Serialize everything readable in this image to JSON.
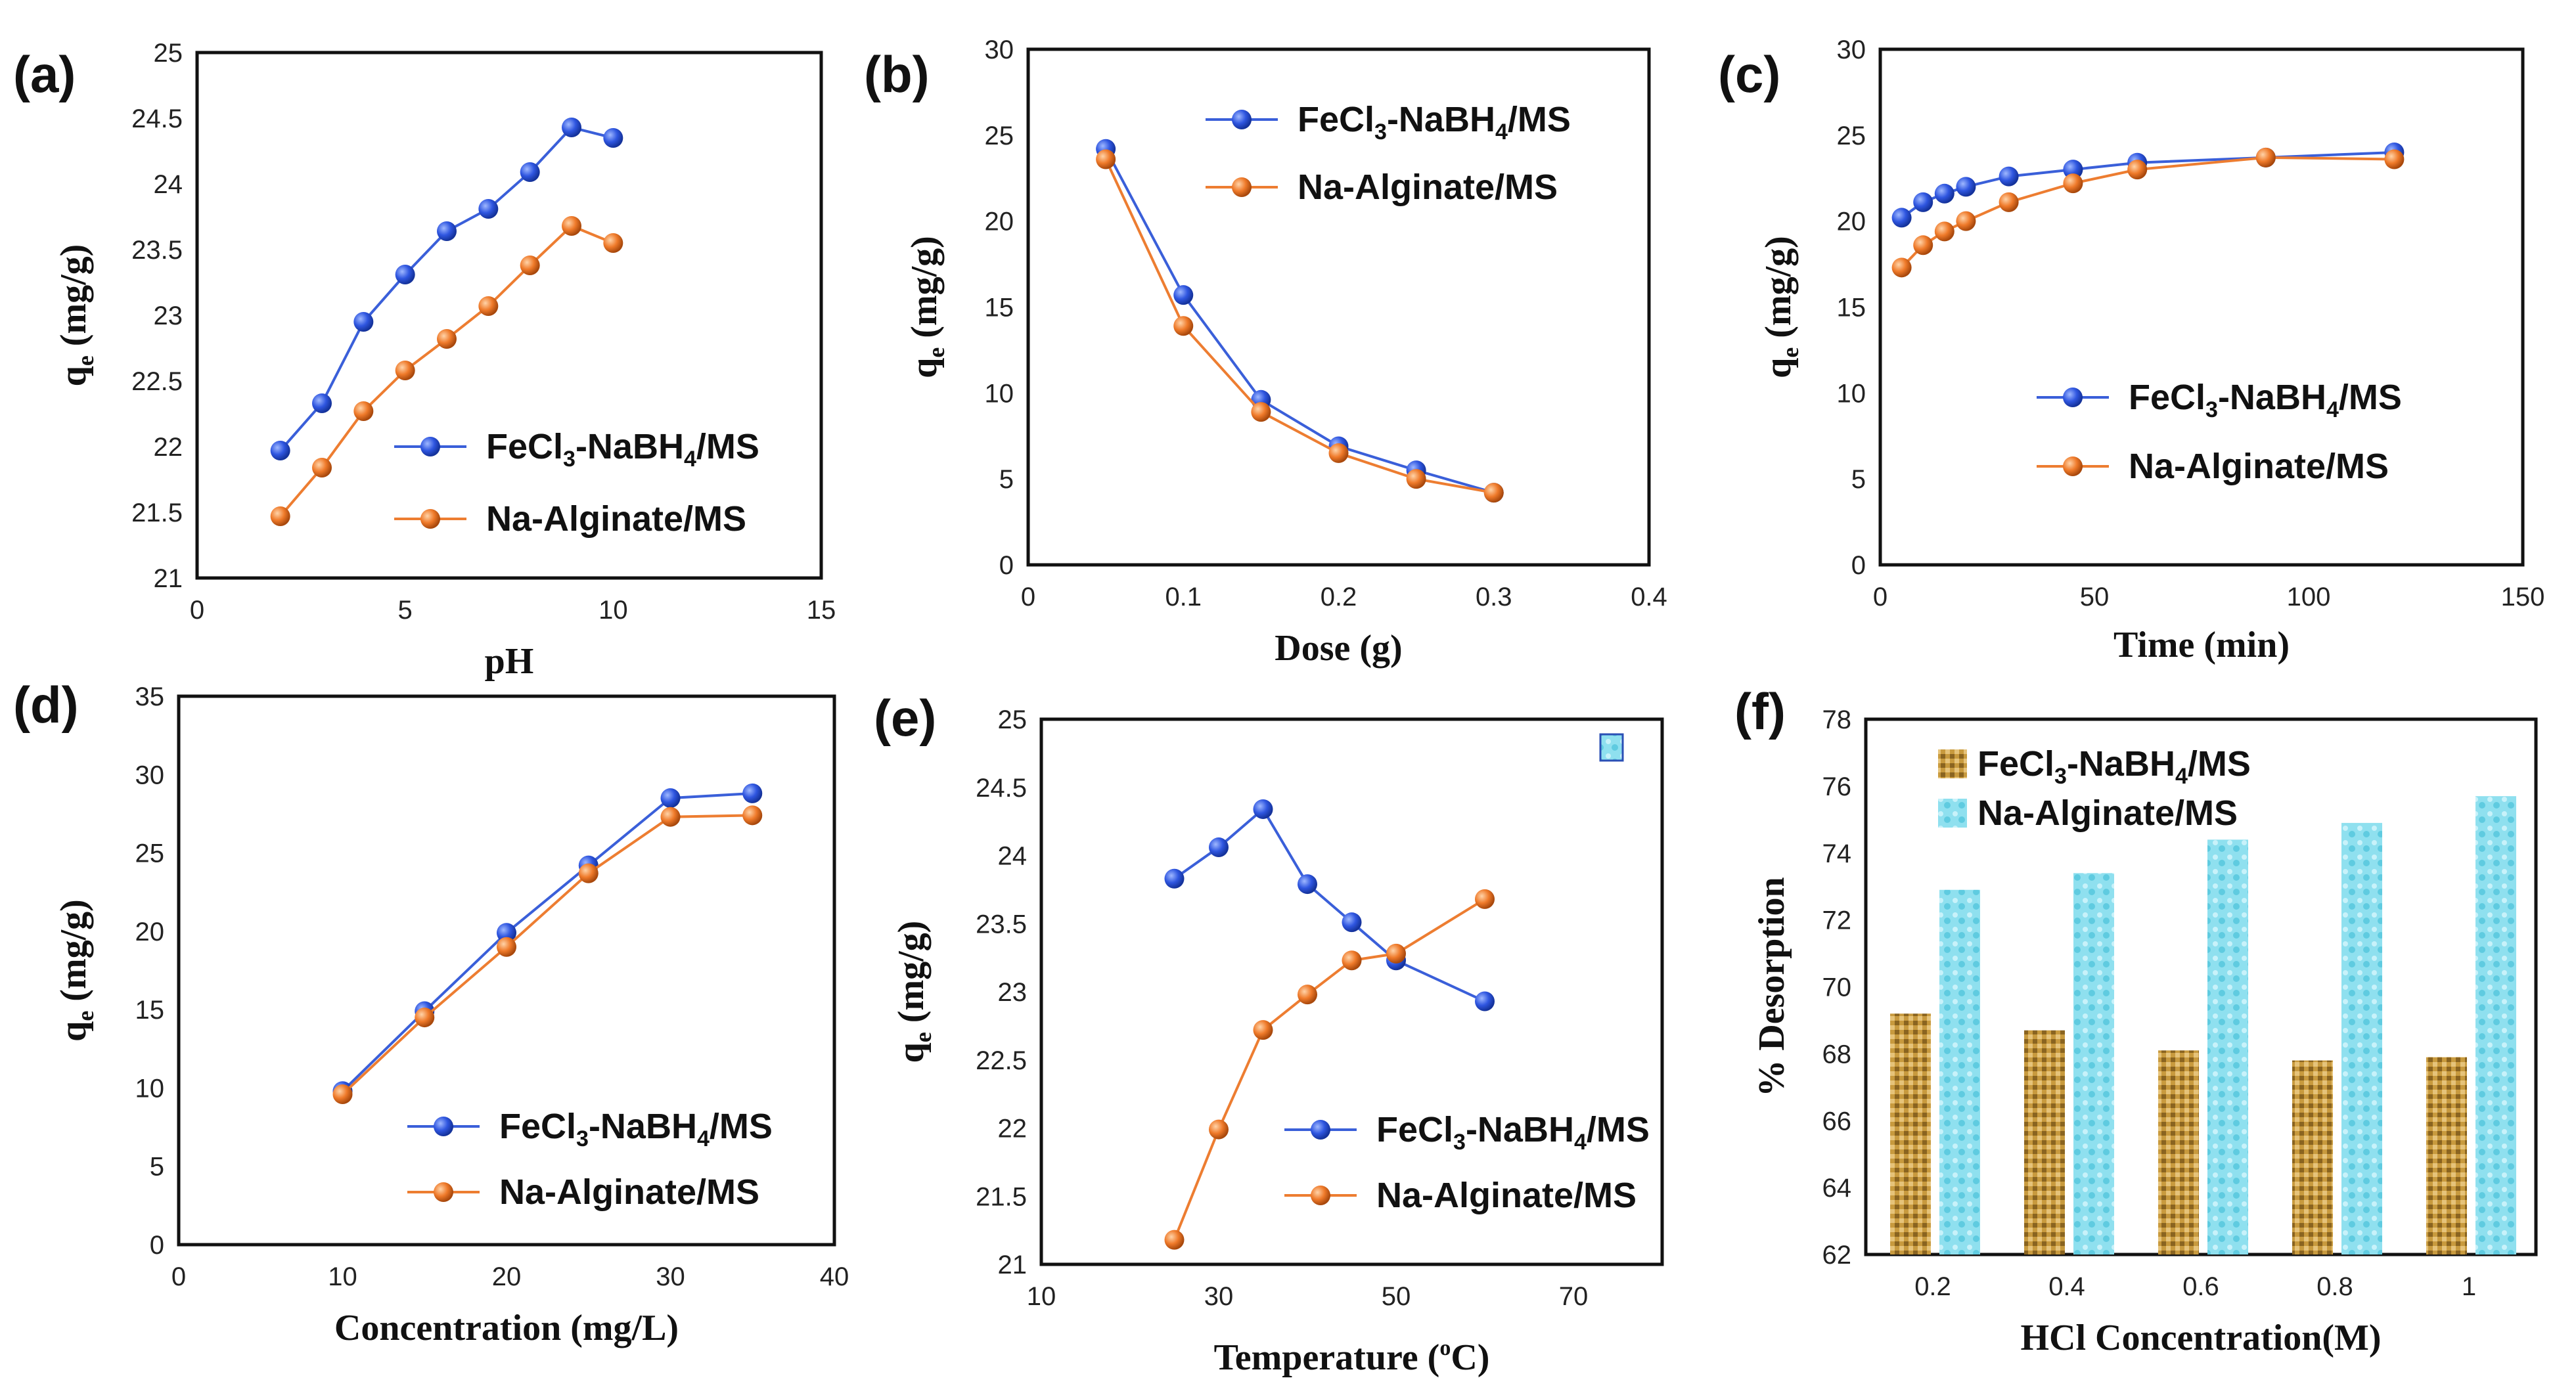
{
  "colors": {
    "series1_line": "#3a5fd9",
    "series1_marker": "#2f56e0",
    "series2_line": "#ed7d31",
    "series2_marker": "#ef7a2a",
    "bar1": "#c79a3c",
    "bar2": "#8fe0ef"
  },
  "legend_labels": {
    "s1_a": "FeCl",
    "s1_sub1": "3",
    "s1_b": "-NaBH",
    "s1_sub2": "4",
    "s1_c": "/MS",
    "s2": "Na-Alginate/MS"
  },
  "chart_data": [
    {
      "panel": "(a)",
      "type": "line",
      "xlabel": "pH",
      "ylabel": "q",
      "ylabel_sub": "e",
      "ylabel_unit": " (mg/g)",
      "xlim": [
        0,
        15
      ],
      "ylim": [
        21,
        25
      ],
      "xticks": [
        "0",
        "5",
        "10",
        "15"
      ],
      "yticks": [
        "21",
        "21.5",
        "22",
        "22.5",
        "23",
        "23.5",
        "24",
        "24.5",
        "25"
      ],
      "legend_position": "lower-right",
      "series": [
        {
          "name": "FeCl3-NaBH4/MS",
          "x": [
            2,
            3,
            4,
            5,
            6,
            7,
            8,
            9,
            10
          ],
          "values": [
            21.97,
            22.33,
            22.95,
            23.31,
            23.64,
            23.81,
            24.09,
            24.43,
            24.35
          ]
        },
        {
          "name": "Na-Alginate/MS",
          "x": [
            2,
            3,
            4,
            5,
            6,
            7,
            8,
            9,
            10
          ],
          "values": [
            21.47,
            21.84,
            22.27,
            22.58,
            22.82,
            23.07,
            23.38,
            23.68,
            23.55
          ]
        }
      ]
    },
    {
      "panel": "(b)",
      "type": "line",
      "xlabel": "Dose (g)",
      "ylabel": "q",
      "ylabel_sub": "e",
      "ylabel_unit": " (mg/g)",
      "xlim": [
        0,
        0.4
      ],
      "ylim": [
        0,
        30
      ],
      "xticks": [
        "0",
        "0.1",
        "0.2",
        "0.3",
        "0.4"
      ],
      "yticks": [
        "0",
        "5",
        "10",
        "15",
        "20",
        "25",
        "30"
      ],
      "legend_position": "top-right",
      "series": [
        {
          "name": "FeCl3-NaBH4/MS",
          "x": [
            0.05,
            0.1,
            0.15,
            0.2,
            0.25,
            0.3
          ],
          "values": [
            24.2,
            15.7,
            9.6,
            6.9,
            5.5,
            4.2
          ]
        },
        {
          "name": "Na-Alginate/MS",
          "x": [
            0.05,
            0.1,
            0.15,
            0.2,
            0.25,
            0.3
          ],
          "values": [
            23.6,
            13.9,
            8.9,
            6.5,
            5.0,
            4.2
          ]
        }
      ]
    },
    {
      "panel": "(c)",
      "type": "line",
      "xlabel": "Time (min)",
      "ylabel": "q",
      "ylabel_sub": "e",
      "ylabel_unit": " (mg/g)",
      "xlim": [
        0,
        150
      ],
      "ylim": [
        0,
        30
      ],
      "xticks": [
        "0",
        "50",
        "100",
        "150"
      ],
      "yticks": [
        "0",
        "5",
        "10",
        "15",
        "20",
        "25",
        "30"
      ],
      "legend_position": "center-right",
      "series": [
        {
          "name": "FeCl3-NaBH4/MS",
          "x": [
            5,
            10,
            15,
            20,
            30,
            45,
            60,
            90,
            120
          ],
          "values": [
            20.2,
            21.1,
            21.6,
            22.0,
            22.6,
            23.0,
            23.4,
            23.7,
            24.0
          ]
        },
        {
          "name": "Na-Alginate/MS",
          "x": [
            5,
            10,
            15,
            20,
            30,
            45,
            60,
            90,
            120
          ],
          "values": [
            17.3,
            18.6,
            19.4,
            20.0,
            21.1,
            22.2,
            23.0,
            23.7,
            23.6
          ]
        }
      ]
    },
    {
      "panel": "(d)",
      "type": "line",
      "xlabel": "Concentration (mg/L)",
      "ylabel": "q",
      "ylabel_sub": "e",
      "ylabel_unit": " (mg/g)",
      "xlim": [
        0,
        40
      ],
      "ylim": [
        0,
        35
      ],
      "xticks": [
        "0",
        "10",
        "20",
        "30",
        "40"
      ],
      "yticks": [
        "0",
        "5",
        "10",
        "15",
        "20",
        "25",
        "30",
        "35"
      ],
      "legend_position": "lower-right",
      "series": [
        {
          "name": "FeCl3-NaBH4/MS",
          "x": [
            10,
            15,
            20,
            25,
            30,
            35
          ],
          "values": [
            9.8,
            14.9,
            19.9,
            24.2,
            28.5,
            28.8
          ]
        },
        {
          "name": "Na-Alginate/MS",
          "x": [
            10,
            15,
            20,
            25,
            30,
            35
          ],
          "values": [
            9.6,
            14.5,
            19.0,
            23.7,
            27.3,
            27.4
          ]
        }
      ]
    },
    {
      "panel": "(e)",
      "type": "line",
      "xlabel": "Temperature (",
      "xlabel_sup": "o",
      "xlabel_end": "C)",
      "ylabel": "q",
      "ylabel_sub": "e",
      "ylabel_unit": " (mg/g)",
      "xlim": [
        10,
        80
      ],
      "ylim": [
        21,
        25
      ],
      "xticks": [
        "10",
        "30",
        "50",
        "70"
      ],
      "yticks": [
        "21",
        "21.5",
        "22",
        "22.5",
        "23",
        "23.5",
        "24",
        "24.5",
        "25"
      ],
      "legend_position": "lower-right",
      "series": [
        {
          "name": "FeCl3-NaBH4/MS",
          "x": [
            25,
            30,
            35,
            40,
            45,
            50,
            60
          ],
          "values": [
            23.83,
            24.06,
            24.34,
            23.79,
            23.51,
            23.23,
            22.93
          ]
        },
        {
          "name": "Na-Alginate/MS",
          "x": [
            25,
            30,
            35,
            40,
            45,
            50,
            60
          ],
          "values": [
            21.18,
            21.99,
            22.72,
            22.98,
            23.23,
            23.28,
            23.68
          ]
        }
      ]
    },
    {
      "panel": "(f)",
      "type": "bar",
      "xlabel": "HCl Concentration(M)",
      "ylabel": "% Desorption",
      "categories": [
        "0.2",
        "0.4",
        "0.6",
        "0.8",
        "1"
      ],
      "ylim": [
        62,
        78
      ],
      "yticks": [
        "62",
        "64",
        "66",
        "68",
        "70",
        "72",
        "74",
        "76",
        "78"
      ],
      "legend_position": "top-left",
      "series": [
        {
          "name": "FeCl3-NaBH4/MS",
          "values": [
            69.2,
            68.7,
            68.1,
            67.8,
            67.9
          ]
        },
        {
          "name": "Na-Alginate/MS",
          "values": [
            72.9,
            73.4,
            74.4,
            74.9,
            75.7
          ]
        }
      ]
    }
  ]
}
